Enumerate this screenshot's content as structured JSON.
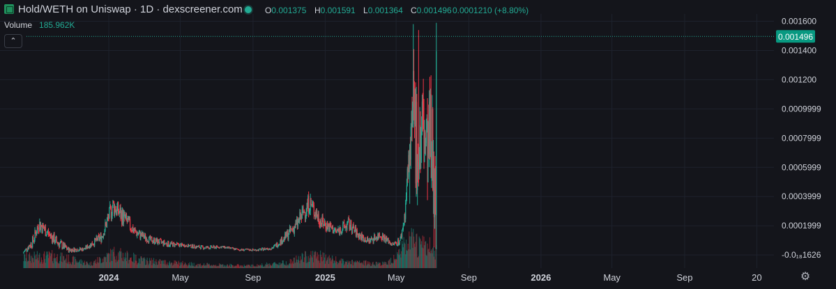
{
  "header": {
    "title": "Hold/WETH on Uniswap · 1D · dexscreener.com",
    "open_label": "O",
    "open": "0.001375",
    "high_label": "H",
    "high": "0.001591",
    "low_label": "L",
    "low": "0.001364",
    "close_label": "C",
    "close": "0.001496",
    "change": "0.0001210 (+8.80%)",
    "volume_label": "Volume",
    "volume": "185.962K",
    "collapse_icon": "chevron-up-icon"
  },
  "colors": {
    "up": "#22ab94",
    "down": "#f23645",
    "background": "#14151b",
    "grid": "#1e222d",
    "text": "#d1d4dc"
  },
  "chart_data": {
    "type": "candlestick",
    "title": "Hold/WETH on Uniswap · 1D · dexscreener.com",
    "last_price": "0.001496",
    "last_price_value": 0.001496,
    "y_ticks": [
      "0.001600",
      "0.001400",
      "0.001200",
      "0.0009999",
      "0.0007999",
      "0.0005999",
      "0.0003999",
      "0.0001999",
      "-0.0₁₈1626"
    ],
    "y_tick_values": [
      0.0016,
      0.0014,
      0.0012,
      0.0009999,
      0.0007999,
      0.0005999,
      0.0003999,
      0.0001999,
      0.0
    ],
    "x_ticks": [
      "2024",
      "May",
      "Sep",
      "2025",
      "May",
      "Sep",
      "2026",
      "May",
      "Sep",
      "20"
    ],
    "x_tick_dates": [
      "2024-01-01",
      "2024-05-01",
      "2024-09-01",
      "2025-01-01",
      "2025-05-01",
      "2025-09-01",
      "2026-01-01",
      "2026-05-01",
      "2026-09-01",
      "2027-01-01"
    ],
    "x_range": [
      "2023-07-01",
      "2027-01-30"
    ],
    "ylim": [
      -9e-05,
      0.00165
    ],
    "price_profile": [
      [
        "2023-08-10",
        1e-05,
        3e-05
      ],
      [
        "2023-08-25",
        6e-05,
        0.00012
      ],
      [
        "2023-09-05",
        0.00018,
        0.00025
      ],
      [
        "2023-09-20",
        0.00012,
        0.00018
      ],
      [
        "2023-10-05",
        6e-05,
        0.00012
      ],
      [
        "2023-10-25",
        2e-05,
        5e-05
      ],
      [
        "2023-11-20",
        3e-05,
        5e-05
      ],
      [
        "2023-12-20",
        0.0001,
        0.00015
      ],
      [
        "2024-01-08",
        0.0003,
        0.00038
      ],
      [
        "2024-01-25",
        0.00022,
        0.0003
      ],
      [
        "2024-02-15",
        0.00013,
        0.00018
      ],
      [
        "2024-03-10",
        9e-05,
        0.00012
      ],
      [
        "2024-04-10",
        6e-05,
        9e-05
      ],
      [
        "2024-05-10",
        6e-05,
        7e-05
      ],
      [
        "2024-06-10",
        4e-05,
        6e-05
      ],
      [
        "2024-07-10",
        5e-05,
        6e-05
      ],
      [
        "2024-08-10",
        3e-05,
        4e-05
      ],
      [
        "2024-09-10",
        3e-05,
        4e-05
      ],
      [
        "2024-10-05",
        4e-05,
        6e-05
      ],
      [
        "2024-10-25",
        0.0001,
        0.00014
      ],
      [
        "2024-11-15",
        0.00018,
        0.00025
      ],
      [
        "2024-12-05",
        0.00032,
        0.0004
      ],
      [
        "2024-12-25",
        0.0002,
        0.00026
      ],
      [
        "2025-01-20",
        0.00014,
        0.00018
      ],
      [
        "2025-02-10",
        0.00018,
        0.00024
      ],
      [
        "2025-02-25",
        0.00012,
        0.00016
      ],
      [
        "2025-03-15",
        8e-05,
        0.00011
      ],
      [
        "2025-04-05",
        0.00012,
        0.00016
      ],
      [
        "2025-04-25",
        6e-05,
        8e-05
      ],
      [
        "2025-05-08",
        8e-05,
        0.00012
      ],
      [
        "2025-05-15",
        0.00022,
        0.00028
      ],
      [
        "2025-05-22",
        0.00055,
        0.0007
      ],
      [
        "2025-05-30",
        0.0012,
        0.0006
      ],
      [
        "2025-06-08",
        0.001,
        0.00045
      ],
      [
        "2025-06-15",
        0.0012,
        0.0005
      ],
      [
        "2025-06-22",
        0.00095,
        0.00045
      ],
      [
        "2025-06-28",
        0.0011,
        0.0003
      ],
      [
        "2025-07-02",
        0.001,
        0.00025
      ],
      [
        "2025-07-08",
        0.0014,
        0.00025
      ]
    ],
    "spikes": [
      [
        "2025-05-30",
        0.00158
      ],
      [
        "2025-06-08",
        0.00154
      ],
      [
        "2025-07-09",
        0.00161
      ],
      [
        "2025-05-24",
        0.00035
      ],
      [
        "2025-06-20",
        0.00068
      ]
    ],
    "volume_profile": [
      [
        "2023-08-10",
        0.35
      ],
      [
        "2023-10-01",
        0.4
      ],
      [
        "2023-12-01",
        0.15
      ],
      [
        "2024-01-10",
        0.5
      ],
      [
        "2024-03-01",
        0.25
      ],
      [
        "2024-06-01",
        0.12
      ],
      [
        "2024-09-01",
        0.08
      ],
      [
        "2024-11-01",
        0.2
      ],
      [
        "2024-12-10",
        0.45
      ],
      [
        "2025-02-01",
        0.2
      ],
      [
        "2025-04-15",
        0.15
      ],
      [
        "2025-05-25",
        0.9
      ],
      [
        "2025-07-09",
        0.6
      ]
    ]
  }
}
